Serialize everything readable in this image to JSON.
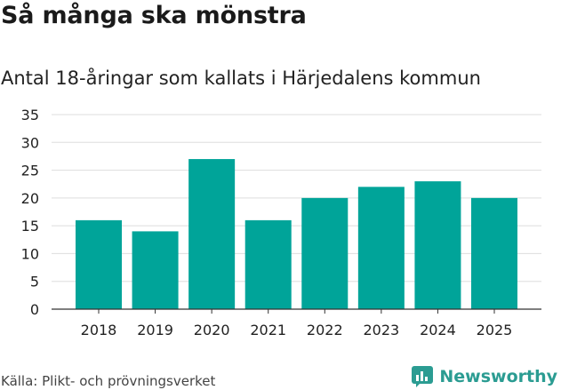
{
  "header": {
    "title": "Så många ska mönstra",
    "subtitle": "Antal 18-åringar som kallats i Härjedalens kommun"
  },
  "footer": {
    "source": "Källa: Plikt- och prövningsverket",
    "brand": "Newsworthy",
    "brand_icon": "newsworthy-logo-icon"
  },
  "colors": {
    "bar": "#00a499",
    "grid": "#dddddd",
    "axis": "#333333",
    "text": "#222222",
    "brand": "#2b9c92"
  },
  "chart_data": {
    "type": "bar",
    "title": "Så många ska mönstra",
    "subtitle": "Antal 18-åringar som kallats i Härjedalens kommun",
    "xlabel": "",
    "ylabel": "",
    "categories": [
      "2018",
      "2019",
      "2020",
      "2021",
      "2022",
      "2023",
      "2024",
      "2025"
    ],
    "values": [
      16,
      14,
      27,
      16,
      20,
      22,
      23,
      20
    ],
    "ylim": [
      0,
      35
    ],
    "yticks": [
      0,
      5,
      10,
      15,
      20,
      25,
      30,
      35
    ],
    "grid": true,
    "legend": "none"
  }
}
